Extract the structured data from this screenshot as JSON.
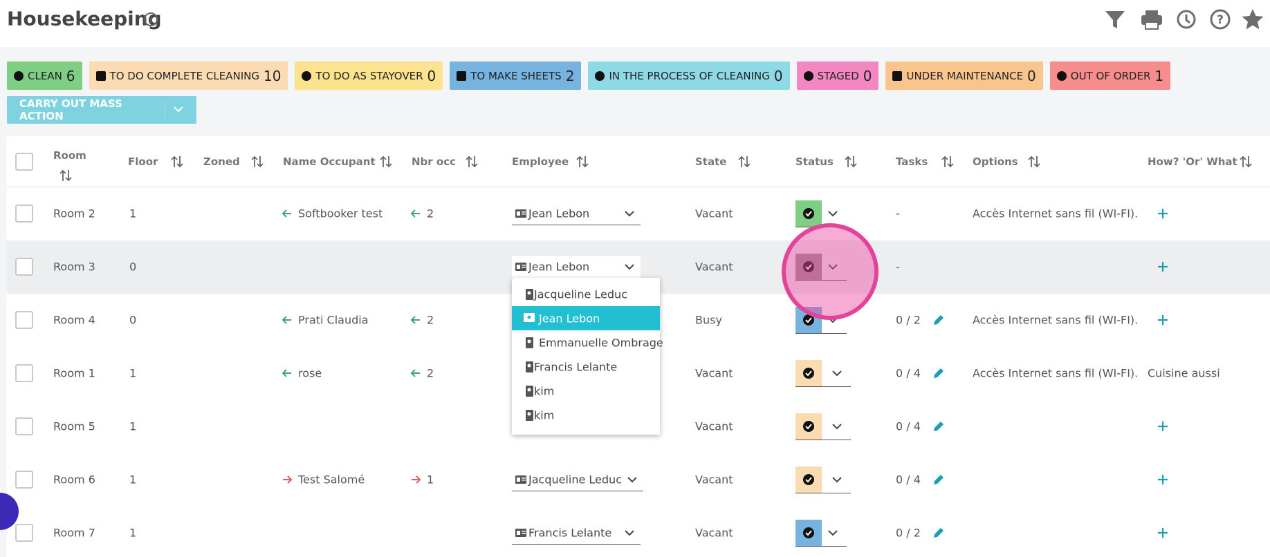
{
  "header": {
    "title": "Housekeeping"
  },
  "status_filters": [
    {
      "label": "CLEAN",
      "count": "6"
    },
    {
      "label": "TO DO COMPLETE CLEANING",
      "count": "10"
    },
    {
      "label": "TO DO AS STAYOVER",
      "count": "0"
    },
    {
      "label": "TO MAKE SHEETS",
      "count": "2"
    },
    {
      "label": "IN THE PROCESS OF CLEANING",
      "count": "0"
    },
    {
      "label": "STAGED",
      "count": "0"
    },
    {
      "label": "UNDER MAINTENANCE",
      "count": "0"
    },
    {
      "label": "OUT OF ORDER",
      "count": "1"
    }
  ],
  "mass_action": "CARRY OUT MASS ACTION",
  "table": {
    "columns": [
      "Room",
      "Floor",
      "Zoned",
      "Name Occupant",
      "Nbr occ",
      "Employee",
      "State",
      "Status",
      "Tasks",
      "Options",
      "How? 'Or' What"
    ],
    "rows": [
      {
        "room": "Room 2",
        "floor": "1",
        "occupant": "Softbooker test",
        "nbr_occ": "2",
        "employee": "Jean Lebon",
        "state": "Vacant",
        "tasks": "-",
        "options": "Accès Internet sans fil (WI-FI)."
      },
      {
        "room": "Room 3",
        "floor": "0",
        "employee": "Jean Lebon",
        "state": "Vacant",
        "tasks": "-"
      },
      {
        "room": "Room 4",
        "floor": "0",
        "occupant": "Prati Claudia",
        "nbr_occ": "2",
        "state": "Busy",
        "tasks": "0 / 2",
        "options": "Accès Internet sans fil (WI-FI)."
      },
      {
        "room": "Room 1",
        "floor": "1",
        "occupant": "rose",
        "nbr_occ": "2",
        "state": "Vacant",
        "tasks": "0 / 4",
        "options": "Accès Internet sans fil (WI-FI).",
        "how": "Cuisine aussi"
      },
      {
        "room": "Room 5",
        "floor": "1",
        "state": "Vacant",
        "tasks": "0 / 4"
      },
      {
        "room": "Room 6",
        "floor": "1",
        "occupant": "Test Salomé",
        "nbr_occ": "1",
        "employee": "Jacqueline Leduc",
        "state": "Vacant",
        "tasks": "0 / 4"
      },
      {
        "room": "Room 7",
        "floor": "1",
        "employee": "Francis Lelante",
        "state": "Vacant",
        "tasks": "0 / 2"
      }
    ]
  },
  "dropdown": {
    "options": [
      "Jacqueline Leduc",
      "Jean Lebon",
      "Emmanuelle Ombrage",
      "Francis Lelante",
      "kim",
      "kim"
    ]
  }
}
